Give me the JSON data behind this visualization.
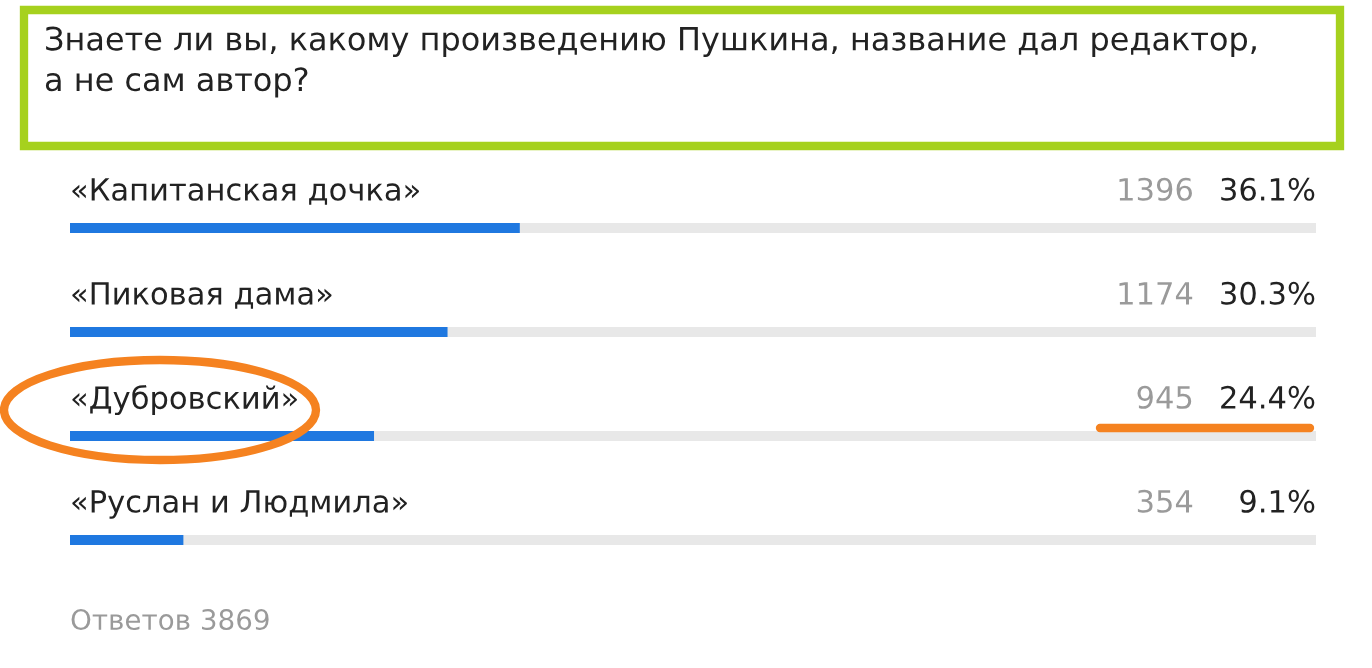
{
  "chart_data": {
    "type": "bar",
    "orientation": "horizontal",
    "title": "Знаете ли вы, какому произведению Пушкина, название дал редактор,\nа не сам автор?",
    "categories": [
      "«Капитанская дочка»",
      "«Пиковая дама»",
      "«Дубровский»",
      "«Руслан и Людмила»"
    ],
    "values": [
      36.1,
      30.3,
      24.4,
      9.1
    ],
    "color": "#1f78e0",
    "value_labels": [
      "36.1%",
      "30.3%",
      "24.4%",
      "9.1%"
    ],
    "xlim": [
      0,
      100
    ],
    "annotations": [
      "1396",
      "1174",
      "945",
      "354",
      "Ответов 3869"
    ]
  }
}
